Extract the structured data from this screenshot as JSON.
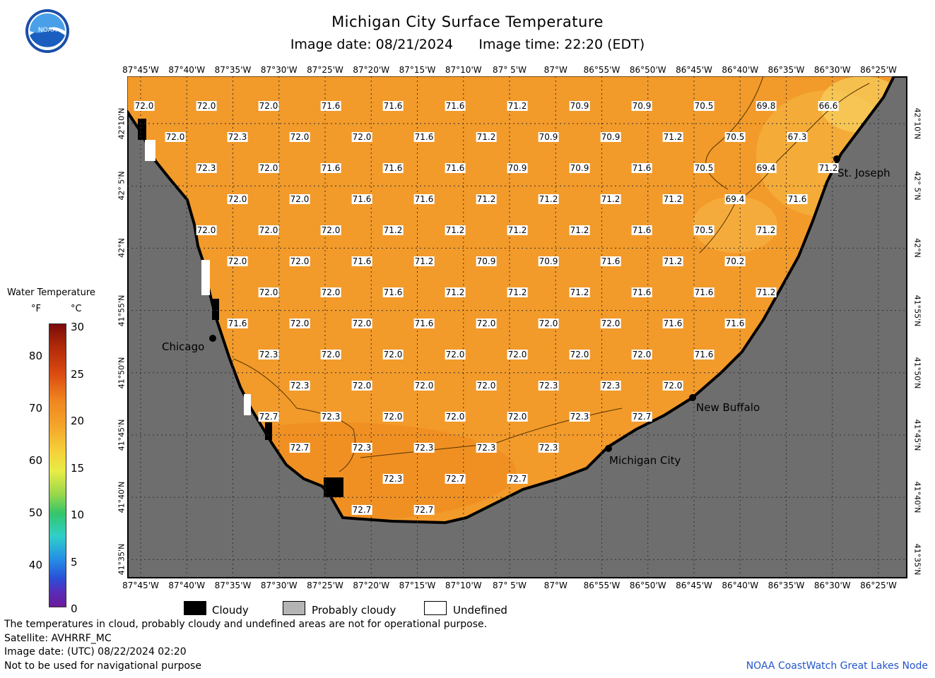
{
  "header": {
    "title": "Michigan City Surface Temperature",
    "date_label": "Image date: 08/21/2024",
    "time_label": "Image time: 22:20 (EDT)"
  },
  "logo": {
    "text": "NOAA",
    "icon": "noaa-logo"
  },
  "longitude_labels": [
    "87°45'W",
    "87°40'W",
    "87°35'W",
    "87°30'W",
    "87°25'W",
    "87°20'W",
    "87°15'W",
    "87°10'W",
    "87° 5'W",
    "87°W",
    "86°55'W",
    "86°50'W",
    "86°45'W",
    "86°40'W",
    "86°35'W",
    "86°30'W",
    "86°25'W"
  ],
  "latitude_labels": [
    "42°10'N",
    "42° 5'N",
    "42°N",
    "41°55'N",
    "41°50'N",
    "41°45'N",
    "41°40'N",
    "41°35'N"
  ],
  "colorbar": {
    "title": "Water Temperature",
    "unit_f": "°F",
    "unit_c": "°C",
    "f_ticks": [
      "80",
      "70",
      "60",
      "50",
      "40"
    ],
    "c_ticks": [
      "30",
      "25",
      "20",
      "15",
      "10",
      "5",
      "0"
    ]
  },
  "cities": [
    {
      "name": "Chicago"
    },
    {
      "name": "St. Joseph"
    },
    {
      "name": "New Buffalo"
    },
    {
      "name": "Michigan City"
    }
  ],
  "temperature_rows": [
    [
      "72.0",
      "72.0",
      "72.0",
      "71.6",
      "71.6",
      "71.6",
      "71.2",
      "70.9",
      "70.9",
      "70.5",
      "69.8",
      "66.6"
    ],
    [
      "72.0",
      "72.3",
      "72.0",
      "72.0",
      "71.6",
      "71.2",
      "70.9",
      "70.9",
      "71.2",
      "70.5",
      "67.3"
    ],
    [
      "72.3",
      "72.0",
      "71.6",
      "71.6",
      "71.6",
      "70.9",
      "70.9",
      "71.6",
      "70.5",
      "69.4",
      "71.2"
    ],
    [
      "72.0",
      "72.0",
      "71.6",
      "71.6",
      "71.2",
      "71.2",
      "71.2",
      "71.2",
      "69.4",
      "71.6"
    ],
    [
      "72.0",
      "72.0",
      "72.0",
      "71.2",
      "71.2",
      "71.2",
      "71.2",
      "71.6",
      "70.5",
      "71.2"
    ],
    [
      "72.0",
      "72.0",
      "71.6",
      "71.2",
      "70.9",
      "70.9",
      "71.6",
      "71.2",
      "70.2"
    ],
    [
      "72.0",
      "72.0",
      "71.6",
      "71.2",
      "71.2",
      "71.2",
      "71.6",
      "71.6",
      "71.2"
    ],
    [
      "71.6",
      "72.0",
      "72.0",
      "71.6",
      "72.0",
      "72.0",
      "72.0",
      "71.6",
      "71.6"
    ],
    [
      "72.3",
      "72.0",
      "72.0",
      "72.0",
      "72.0",
      "72.0",
      "72.0",
      "71.6"
    ],
    [
      "72.3",
      "72.0",
      "72.0",
      "72.0",
      "72.3",
      "72.3",
      "72.0"
    ],
    [
      "72.7",
      "72.3",
      "72.0",
      "72.0",
      "72.0",
      "72.3",
      "72.7"
    ],
    [
      "72.7",
      "72.3",
      "72.3",
      "72.3",
      "72.3"
    ],
    [
      "72.3",
      "72.7",
      "72.7"
    ],
    [
      "72.7",
      "72.7"
    ]
  ],
  "legend": {
    "cloudy": "Cloudy",
    "probably_cloudy": "Probably cloudy",
    "undefined": "Undefined"
  },
  "footer": {
    "note": "The temperatures in cloud, probably cloudy and undefined areas are not for operational purpose.",
    "satellite": "Satellite: AVHRRF_MC",
    "utc_date": "Image date: (UTC) 08/22/2024  02:20",
    "nav_warning": "Not to be used for navigational purpose",
    "credit": "NOAA CoastWatch Great Lakes Node"
  },
  "colors": {
    "water": "#f29a2a",
    "water_warm_nearshore": "#f08a1e",
    "water_cool_ne": "#f6c04a",
    "land": "#6e6e6e",
    "cloud": "#000000"
  }
}
